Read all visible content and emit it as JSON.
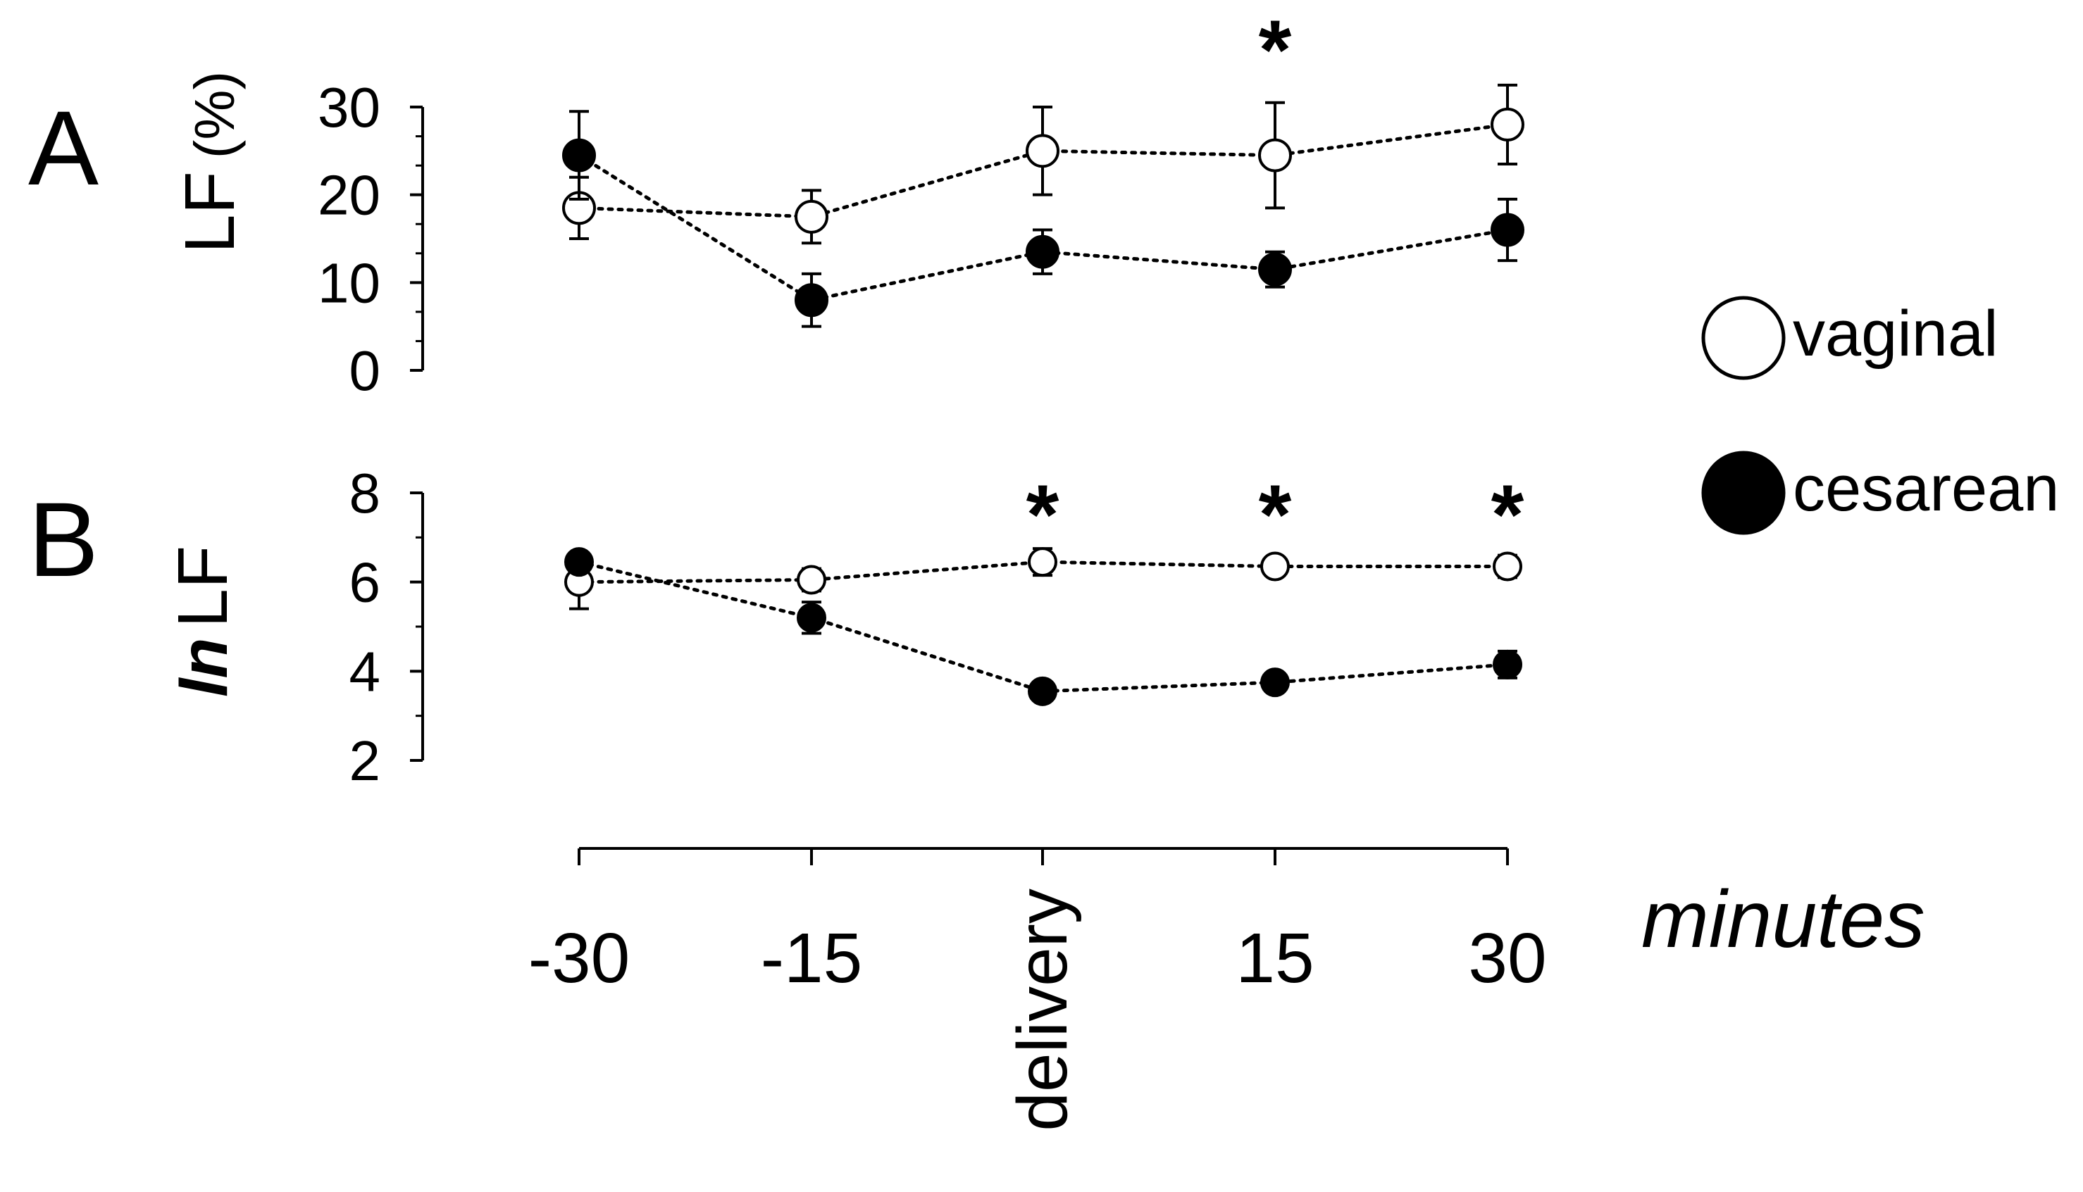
{
  "chart_data": [
    {
      "panel": "A",
      "type": "line",
      "ylabel": "LF",
      "ylabel_unit": "(%)",
      "ylim": [
        0,
        30
      ],
      "yticks": [
        0,
        10,
        20,
        30
      ],
      "categories": [
        "-30",
        "-15",
        "delivery",
        "15",
        "30"
      ],
      "series": [
        {
          "name": "vaginal",
          "marker": "open-circle",
          "values": [
            18.5,
            17.5,
            25,
            24.5,
            28
          ],
          "err": [
            3.5,
            3,
            5,
            6,
            4.5
          ]
        },
        {
          "name": "cesarean",
          "marker": "filled-circle",
          "values": [
            24.5,
            8,
            13.5,
            11.5,
            16
          ],
          "err": [
            5,
            3,
            2.5,
            2,
            3.5
          ]
        }
      ],
      "significance": [
        "",
        "",
        "",
        "*",
        ""
      ]
    },
    {
      "panel": "B",
      "type": "line",
      "ylabel_italic": "ln",
      "ylabel": "LF",
      "ylim": [
        2,
        8
      ],
      "yticks": [
        2,
        4,
        6,
        8
      ],
      "categories": [
        "-30",
        "-15",
        "delivery",
        "15",
        "30"
      ],
      "series": [
        {
          "name": "vaginal",
          "marker": "open-circle",
          "values": [
            6,
            6.05,
            6.45,
            6.35,
            6.35
          ],
          "err": [
            0.6,
            0.25,
            0.3,
            0.2,
            0.25
          ]
        },
        {
          "name": "cesarean",
          "marker": "filled-circle",
          "values": [
            6.45,
            5.2,
            3.55,
            3.75,
            4.15
          ],
          "err": [
            0.2,
            0.35,
            0.2,
            0.2,
            0.3
          ]
        }
      ],
      "significance": [
        "",
        "",
        "*",
        "*",
        "*"
      ]
    }
  ],
  "x_axis": {
    "title": "minutes",
    "tick_labels": [
      "-30",
      "-15",
      "delivery",
      "15",
      "30"
    ]
  },
  "legend": {
    "placement": "right",
    "items": [
      {
        "label": "vaginal",
        "marker": "open-circle"
      },
      {
        "label": "cesarean",
        "marker": "filled-circle"
      }
    ]
  }
}
